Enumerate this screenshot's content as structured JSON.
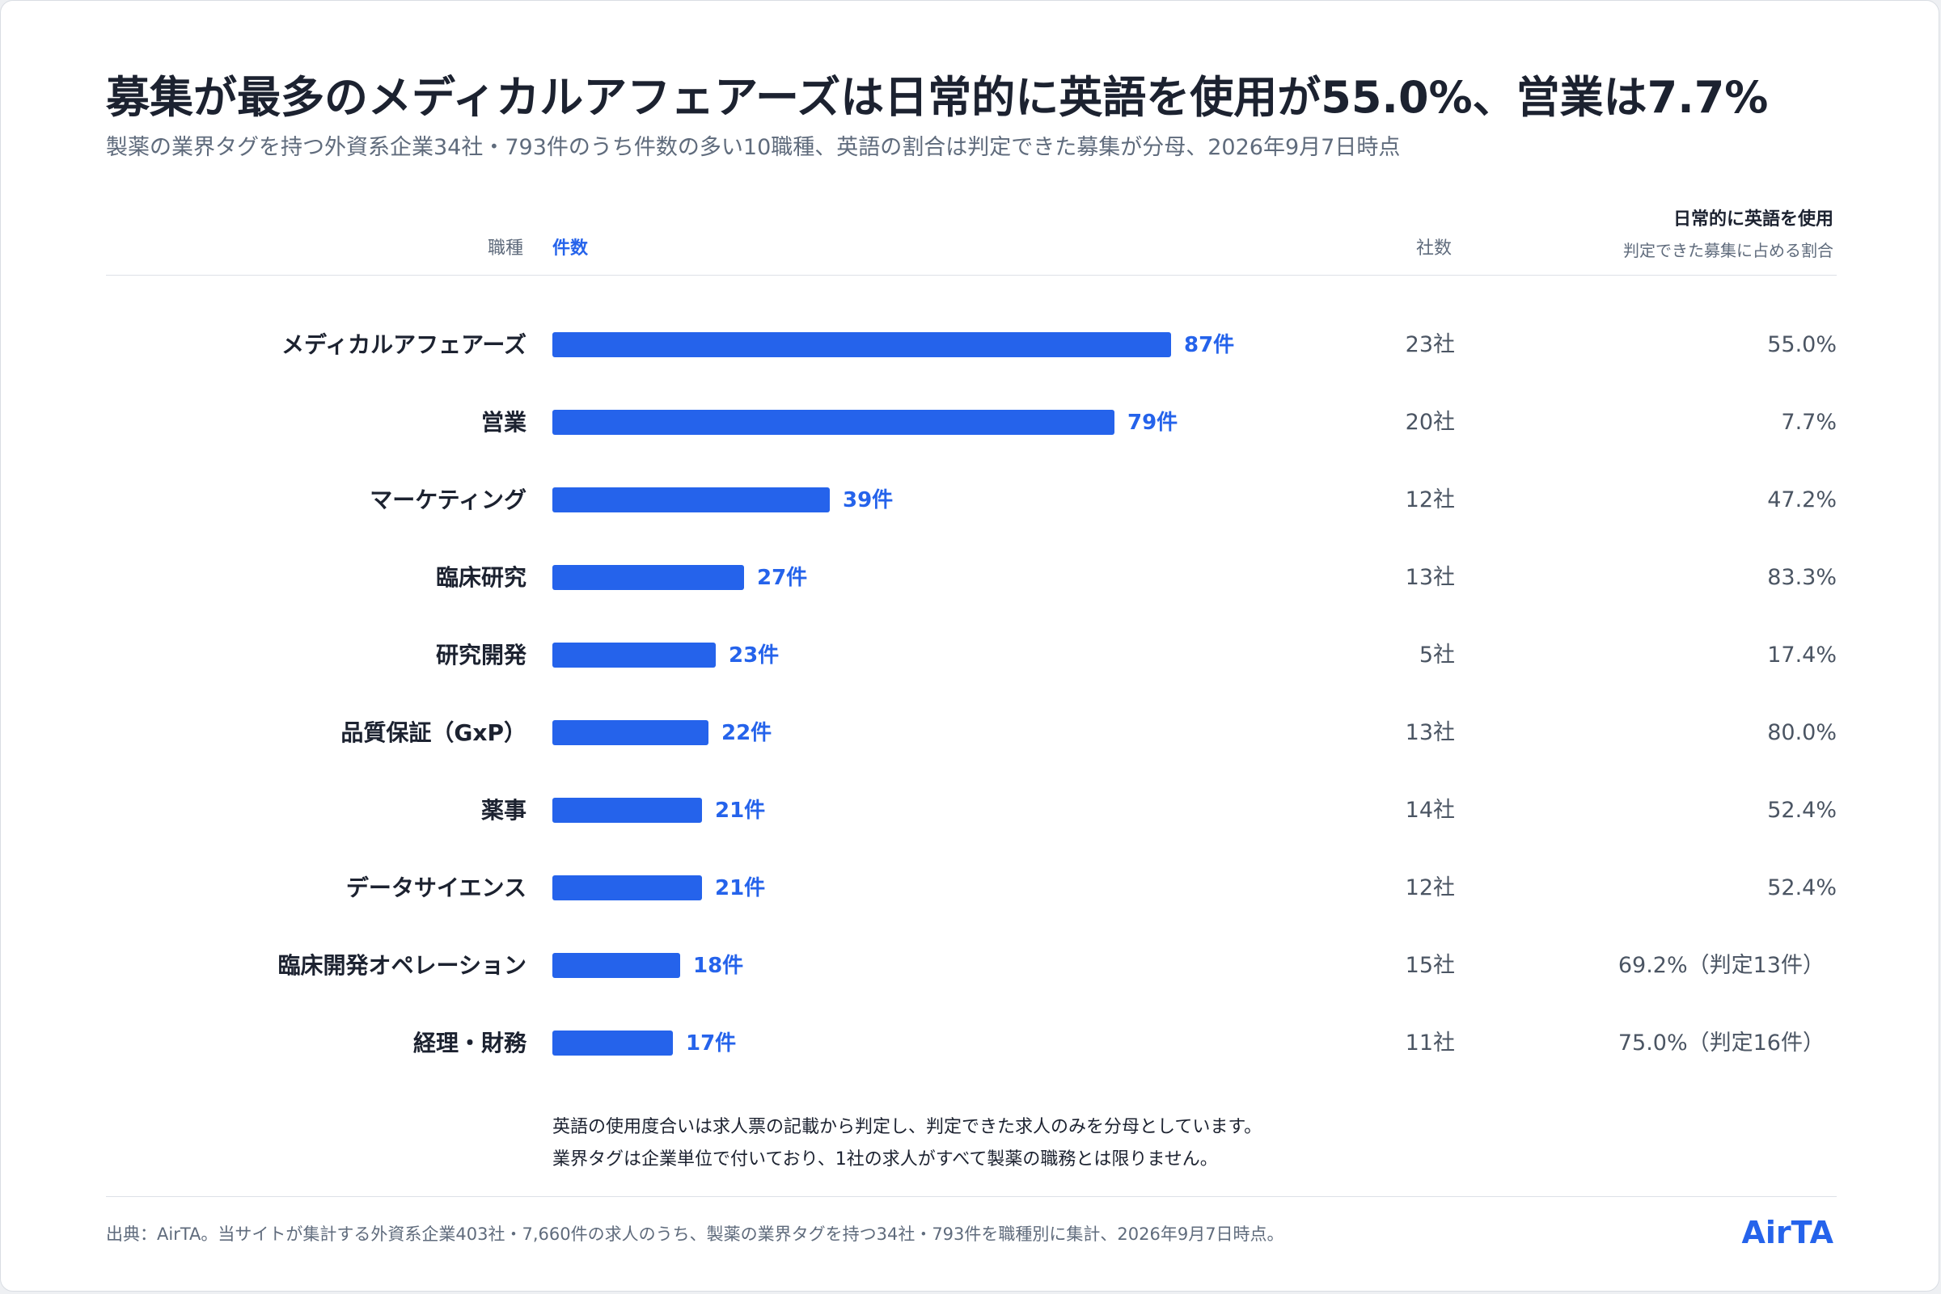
{
  "title": "募集が最多のメディカルアフェアーズは日常的に英語を使用が55.0%、営業は7.7%",
  "subtitle": "製薬の業界タグを持つ外資系企業34社・793件のうち件数の多い10職種、英語の割合は判定できた募集が分母、2026年9月7日時点",
  "headers": {
    "job": "職種",
    "count": "件数",
    "companies": "社数",
    "pct_main": "日常的に英語を使用",
    "pct_sub": "判定できた募集に占める割合"
  },
  "colors": {
    "bar": "#2563eb",
    "text": "#1c2230",
    "muted": "#5f6b7c"
  },
  "chart_data": {
    "type": "bar",
    "orientation": "horizontal",
    "title": "募集が最多のメディカルアフェアーズは日常的に英語を使用が55.0%、営業は7.7%",
    "subtitle": "製薬の業界タグを持つ外資系企業34社・793件のうち件数の多い10職種、英語の割合は判定できた募集が分母、2026年9月7日時点",
    "xlim": [
      0,
      87
    ],
    "grid": false,
    "categories": [
      "メディカルアフェアーズ",
      "営業",
      "マーケティング",
      "臨床研究",
      "研究開発",
      "品質保証（GxP）",
      "薬事",
      "データサイエンス",
      "臨床開発オペレーション",
      "経理・財務"
    ],
    "values": [
      87,
      79,
      39,
      27,
      23,
      22,
      21,
      21,
      18,
      17
    ],
    "rows": [
      {
        "label": "メディカルアフェアーズ",
        "value": 87,
        "value_label": "87件",
        "companies": "23社",
        "pct": "55.0%"
      },
      {
        "label": "営業",
        "value": 79,
        "value_label": "79件",
        "companies": "20社",
        "pct": "7.7%"
      },
      {
        "label": "マーケティング",
        "value": 39,
        "value_label": "39件",
        "companies": "12社",
        "pct": "47.2%"
      },
      {
        "label": "臨床研究",
        "value": 27,
        "value_label": "27件",
        "companies": "13社",
        "pct": "83.3%"
      },
      {
        "label": "研究開発",
        "value": 23,
        "value_label": "23件",
        "companies": "5社",
        "pct": "17.4%"
      },
      {
        "label": "品質保証（GxP）",
        "value": 22,
        "value_label": "22件",
        "companies": "13社",
        "pct": "80.0%"
      },
      {
        "label": "薬事",
        "value": 21,
        "value_label": "21件",
        "companies": "14社",
        "pct": "52.4%"
      },
      {
        "label": "データサイエンス",
        "value": 21,
        "value_label": "21件",
        "companies": "12社",
        "pct": "52.4%"
      },
      {
        "label": "臨床開発オペレーション",
        "value": 18,
        "value_label": "18件",
        "companies": "15社",
        "pct": "69.2%（判定13件）"
      },
      {
        "label": "経理・財務",
        "value": 17,
        "value_label": "17件",
        "companies": "11社",
        "pct": "75.0%（判定16件）"
      }
    ]
  },
  "notes": [
    "英語の使用度合いは求人票の記載から判定し、判定できた求人のみを分母としています。",
    "業界タグは企業単位で付いており、1社の求人がすべて製薬の職務とは限りません。"
  ],
  "source": "出典：AirTA。当サイトが集計する外資系企業403社・7,660件の求人のうち、製薬の業界タグを持つ34社・793件を職種別に集計、2026年9月7日時点。",
  "brand": "AirTA"
}
